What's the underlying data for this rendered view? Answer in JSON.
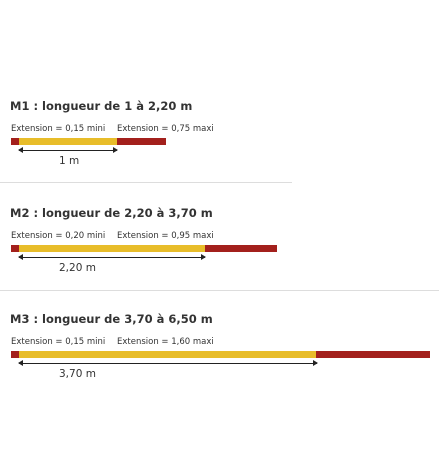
{
  "colors": {
    "extension": "#a3201c",
    "base": "#e8bd2a"
  },
  "sections": [
    {
      "title": "M1 : longueur de 1 à 2,20 m",
      "ext_min": "Extension = 0,15 mini",
      "ext_max": "Extension = 0,75 maxi",
      "length_label": "1 m",
      "base_m": 1.0,
      "ext_min_m": 0.15,
      "ext_max_m": 0.75
    },
    {
      "title": "M2 : longueur de 2,20 à 3,70 m",
      "ext_min": "Extension = 0,20 mini",
      "ext_max": "Extension = 0,95 maxi",
      "length_label": "2,20 m",
      "base_m": 2.2,
      "ext_min_m": 0.2,
      "ext_max_m": 0.95
    },
    {
      "title": "M3 : longueur de 3,70 à 6,50 m",
      "ext_min": "Extension = 0,15 mini",
      "ext_max": "Extension = 1,60 maxi",
      "length_label": "3,70 m",
      "base_m": 3.7,
      "ext_min_m": 0.15,
      "ext_max_m": 1.6
    }
  ]
}
